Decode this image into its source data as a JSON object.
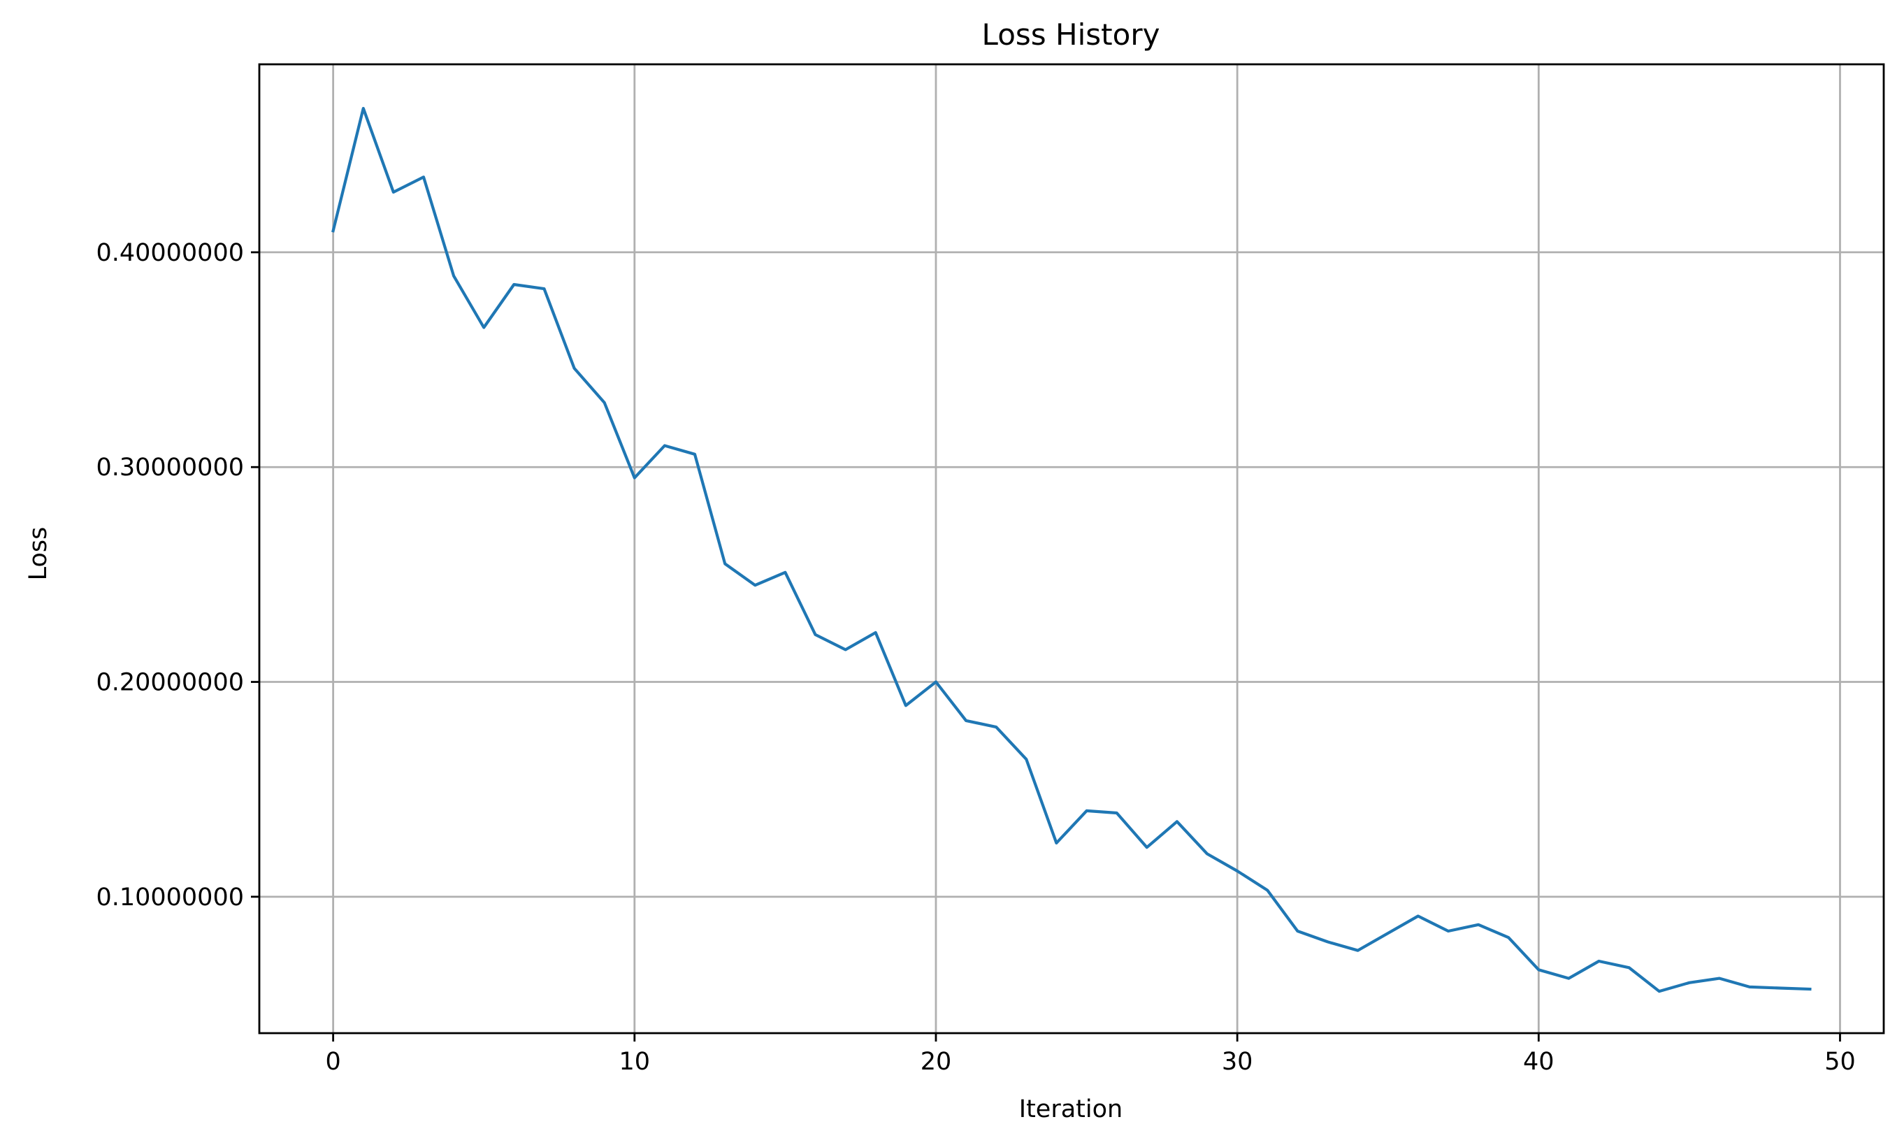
{
  "chart_data": {
    "type": "line",
    "title": "Loss History",
    "xlabel": "Iteration",
    "ylabel": "Loss",
    "xlim": [
      -2.45,
      51.45
    ],
    "ylim": [
      0.0365,
      0.4875
    ],
    "xticks": [
      0,
      10,
      20,
      30,
      40,
      50
    ],
    "xtick_labels": [
      "0",
      "10",
      "20",
      "30",
      "40",
      "50"
    ],
    "yticks": [
      0.1,
      0.2,
      0.3,
      0.4
    ],
    "ytick_labels": [
      "0.10000000",
      "0.20000000",
      "0.30000000",
      "0.40000000"
    ],
    "grid": true,
    "series": [
      {
        "color": "#1f77b4",
        "x": [
          0,
          1,
          2,
          3,
          4,
          5,
          6,
          7,
          8,
          9,
          10,
          11,
          12,
          13,
          14,
          15,
          16,
          17,
          18,
          19,
          20,
          21,
          22,
          23,
          24,
          25,
          26,
          27,
          28,
          29,
          30,
          31,
          32,
          33,
          34,
          35,
          36,
          37,
          38,
          39,
          40,
          41,
          42,
          43,
          44,
          45,
          46,
          47,
          48,
          49
        ],
        "y": [
          0.41,
          0.467,
          0.428,
          0.435,
          0.389,
          0.365,
          0.385,
          0.383,
          0.346,
          0.33,
          0.295,
          0.31,
          0.306,
          0.255,
          0.245,
          0.251,
          0.222,
          0.215,
          0.223,
          0.189,
          0.2,
          0.182,
          0.179,
          0.164,
          0.125,
          0.14,
          0.139,
          0.123,
          0.135,
          0.12,
          0.112,
          0.103,
          0.084,
          0.079,
          0.075,
          0.083,
          0.091,
          0.084,
          0.087,
          0.081,
          0.066,
          0.062,
          0.07,
          0.067,
          0.056,
          0.06,
          0.062,
          0.058,
          0.0575,
          0.057
        ]
      }
    ]
  }
}
